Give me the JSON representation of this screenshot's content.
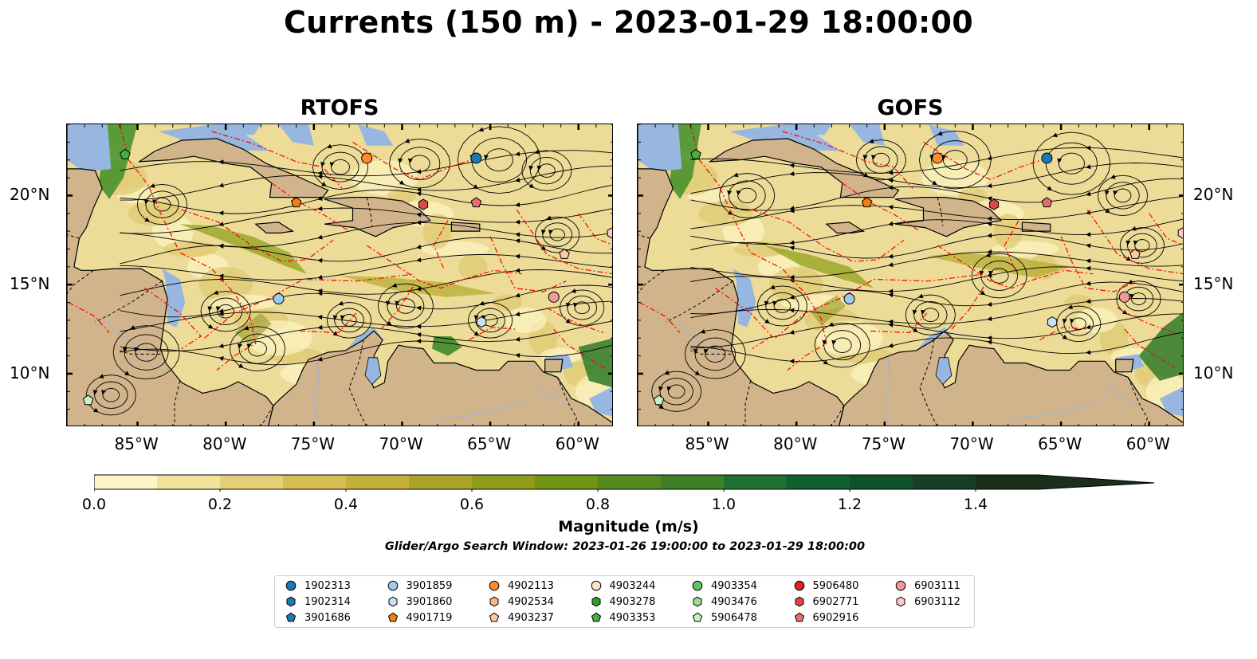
{
  "title": "Currents (150 m) - 2023-01-29 18:00:00",
  "panels": [
    {
      "title": "RTOFS"
    },
    {
      "title": "GOFS"
    }
  ],
  "axes": {
    "lon_labels": [
      "85°W",
      "80°W",
      "75°W",
      "70°W",
      "65°W",
      "60°W"
    ],
    "lat_labels": [
      "20°N",
      "15°N",
      "10°N"
    ],
    "lon_values": [
      -85,
      -80,
      -75,
      -70,
      -65,
      -60
    ],
    "lat_values": [
      20,
      15,
      10
    ],
    "lon_range": [
      -89,
      -58
    ],
    "lat_range": [
      7,
      24
    ]
  },
  "colorbar": {
    "label": "Magnitude (m/s)",
    "ticks": [
      "0.0",
      "0.2",
      "0.4",
      "0.6",
      "0.8",
      "1.0",
      "1.2",
      "1.4"
    ],
    "tick_values": [
      0.0,
      0.2,
      0.4,
      0.6,
      0.8,
      1.0,
      1.2,
      1.4
    ],
    "range": [
      0,
      1.5
    ],
    "extend": "max",
    "colors": [
      "#fdf5c8",
      "#f1e39c",
      "#e4cf78",
      "#d6bd56",
      "#c4b03a",
      "#aaa426",
      "#8f9c17",
      "#6f9418",
      "#56891f",
      "#3f7f26",
      "#1e7130",
      "#0f6130",
      "#0e512b",
      "#163f25",
      "#1a2f1a"
    ]
  },
  "search_window": "Glider/Argo Search Window: 2023-01-26 19:00:00 to 2023-01-29 18:00:00",
  "legend": [
    {
      "id": "1902313",
      "marker": "circle",
      "color": "#1f77b4"
    },
    {
      "id": "1902314",
      "marker": "hexagon",
      "color": "#1f77b4"
    },
    {
      "id": "3901686",
      "marker": "pentagon",
      "color": "#1f77b4"
    },
    {
      "id": "3901859",
      "marker": "circle",
      "color": "#9ecae9"
    },
    {
      "id": "3901860",
      "marker": "hexagon",
      "color": "#c6e0f5"
    },
    {
      "id": "4901719",
      "marker": "pentagon",
      "color": "#f07f0e"
    },
    {
      "id": "4902113",
      "marker": "circle",
      "color": "#ff8c2e"
    },
    {
      "id": "4902534",
      "marker": "hexagon",
      "color": "#ffb27a"
    },
    {
      "id": "4903237",
      "marker": "pentagon",
      "color": "#ffc9a0"
    },
    {
      "id": "4903244",
      "marker": "circle",
      "color": "#ffe3c8"
    },
    {
      "id": "4903278",
      "marker": "hexagon",
      "color": "#2ca02c"
    },
    {
      "id": "4903353",
      "marker": "pentagon",
      "color": "#44b044"
    },
    {
      "id": "4903354",
      "marker": "circle",
      "color": "#65c265"
    },
    {
      "id": "4903476",
      "marker": "hexagon",
      "color": "#98df8a"
    },
    {
      "id": "5906478",
      "marker": "pentagon",
      "color": "#c8f2c0"
    },
    {
      "id": "5906480",
      "marker": "circle",
      "color": "#d62728"
    },
    {
      "id": "6902771",
      "marker": "hexagon",
      "color": "#e04848"
    },
    {
      "id": "6902916",
      "marker": "pentagon",
      "color": "#ea6c6c"
    },
    {
      "id": "6903111",
      "marker": "circle",
      "color": "#f09a9a"
    },
    {
      "id": "6903112",
      "marker": "hexagon",
      "color": "#ffc8c8"
    }
  ],
  "colors": {
    "ocean_fill": "#ecdc98",
    "land": "#d2b48c",
    "shallow_water": "#97b6e0",
    "eez_lines": "#ff0000",
    "streamlines": "#000000"
  }
}
